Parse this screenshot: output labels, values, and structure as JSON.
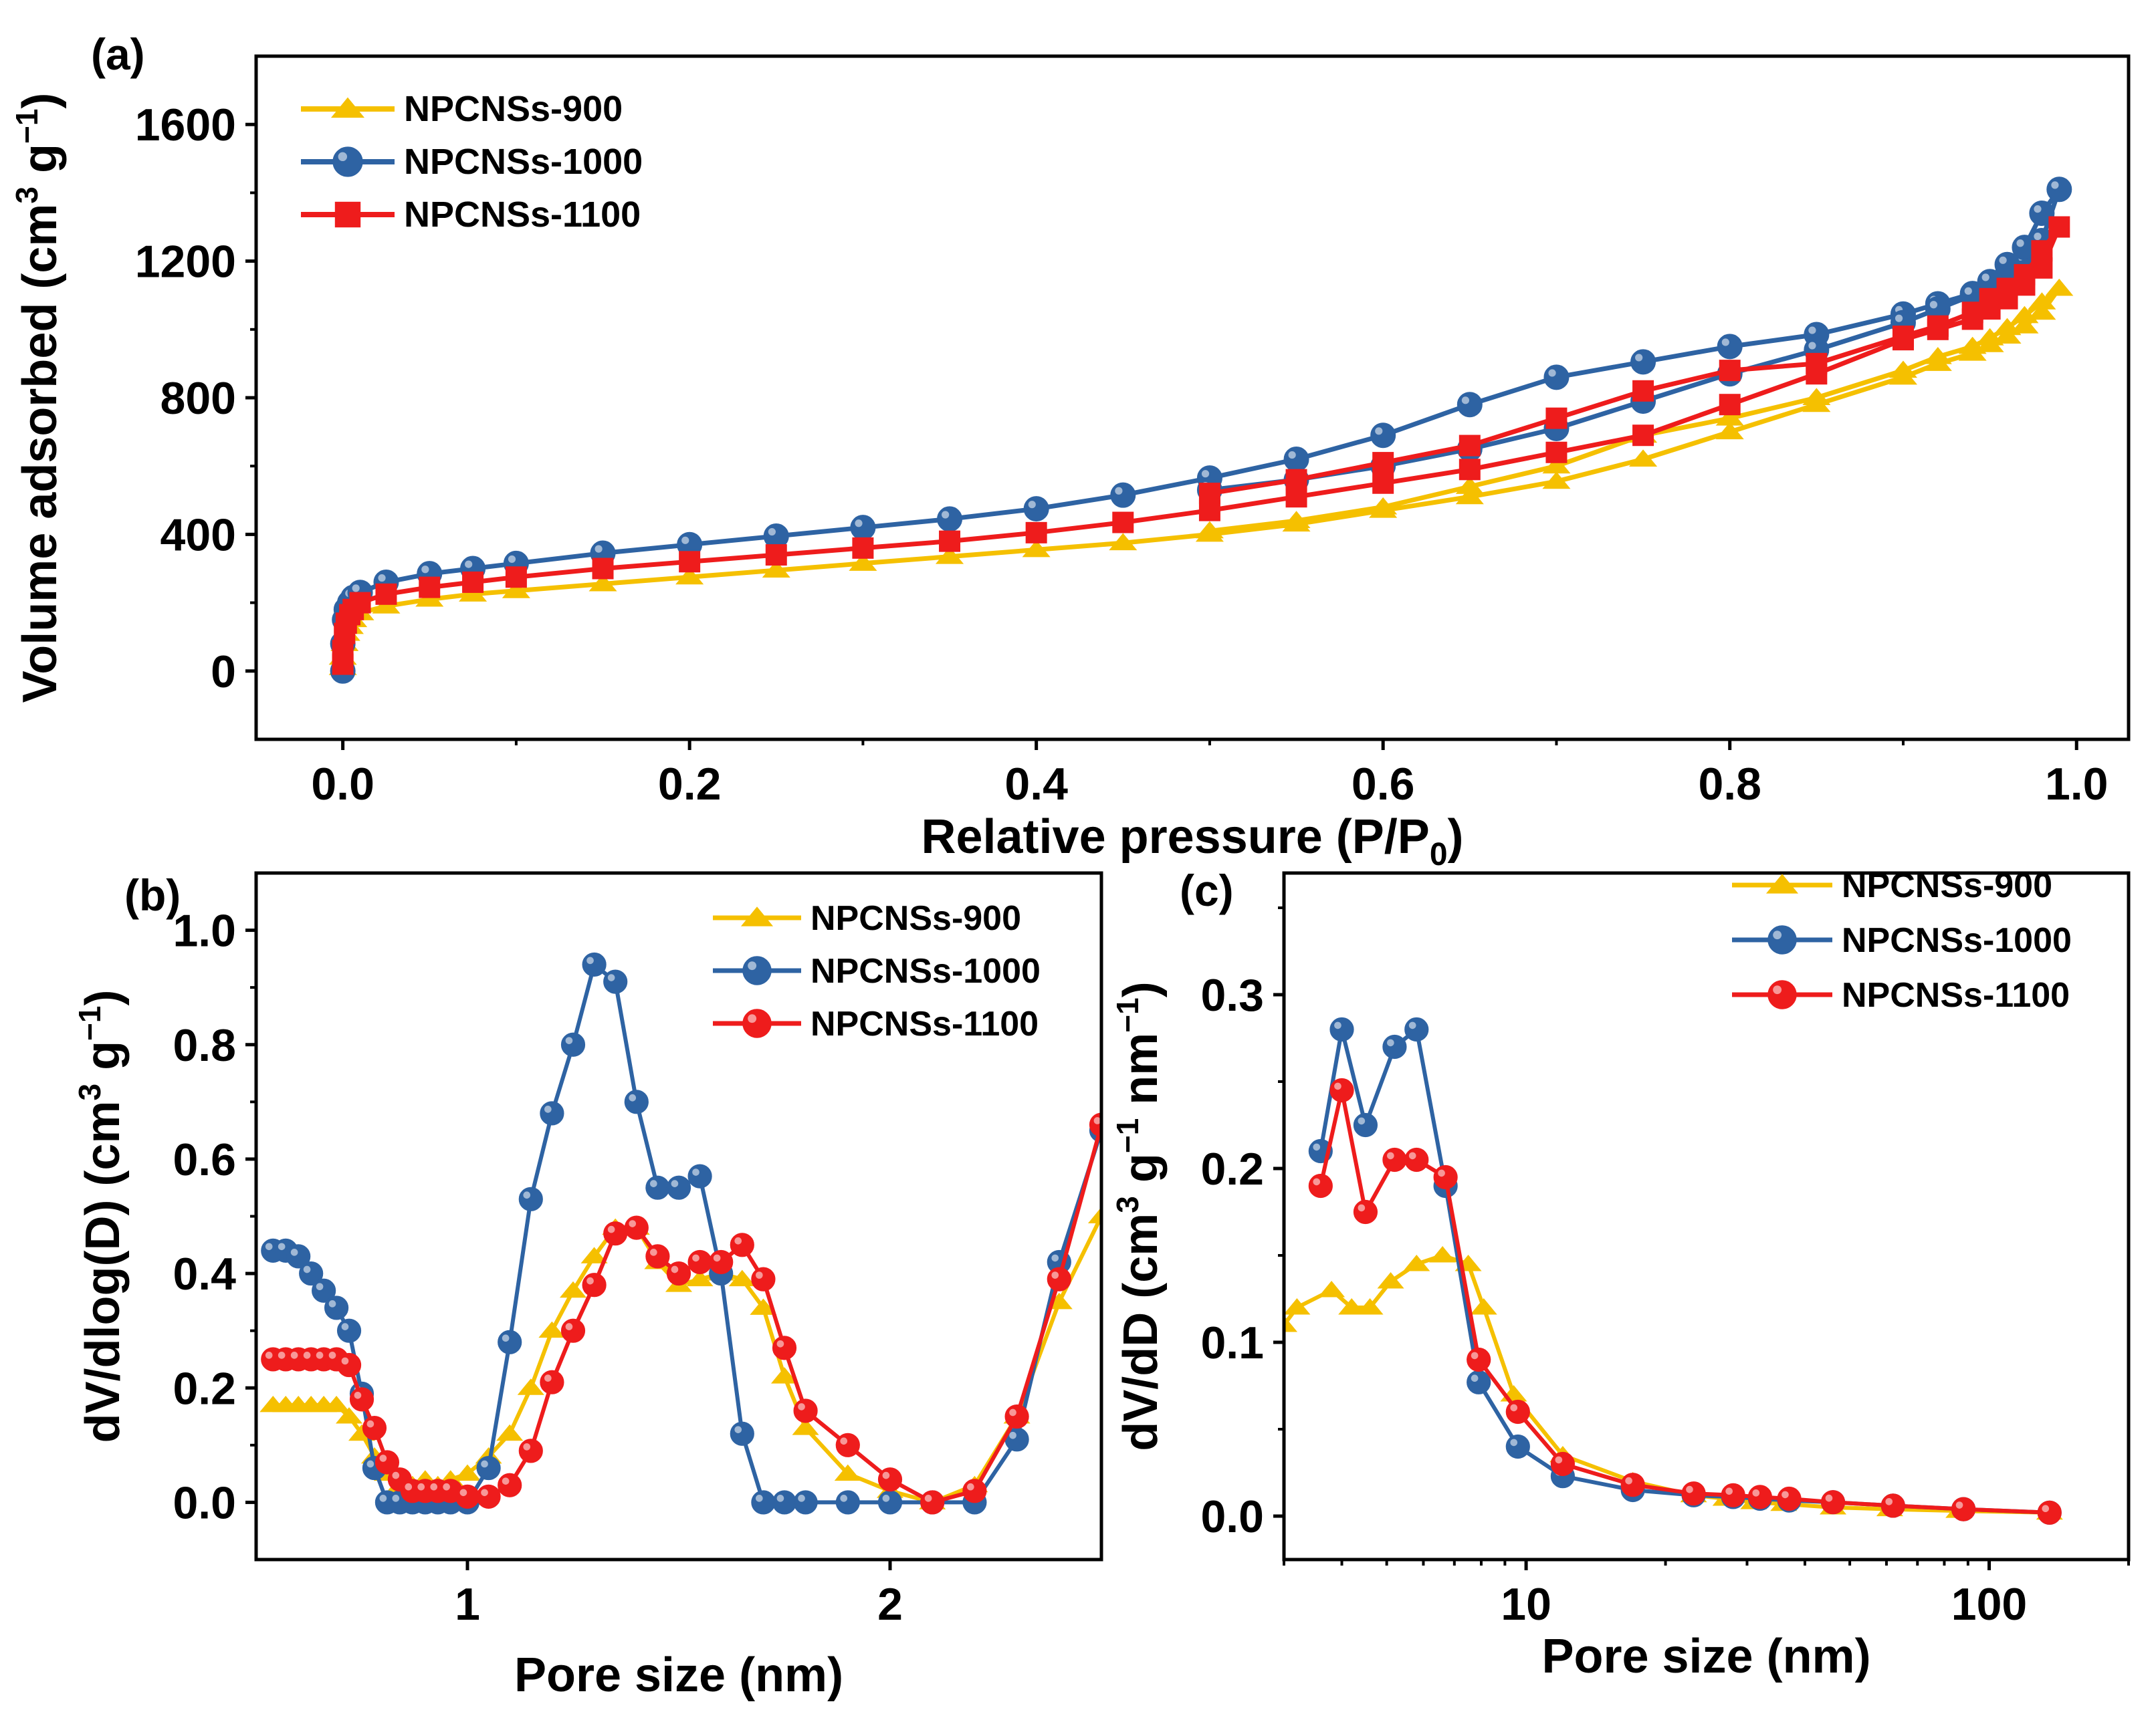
{
  "colors": {
    "npcns900": "#F5C000",
    "npcns1000": "#2E63A3",
    "npcns1100": "#EE1C1C",
    "axis": "#000000"
  },
  "chart_data": [
    {
      "panel": "(a)",
      "type": "line",
      "title": "",
      "xlabel": "Relative pressure (P/P",
      "xlabel_sub": "0",
      "xlabel_end": ")",
      "ylabel": "Volume adsorbed (cm",
      "ylabel_sup": "3",
      "ylabel_mid": " g",
      "ylabel_sup2": "−1",
      "ylabel_end": ")",
      "xlim": [
        -0.05,
        1.03
      ],
      "ylim": [
        -200,
        1800
      ],
      "xticks": [
        0.0,
        0.2,
        0.4,
        0.6,
        0.8,
        1.0
      ],
      "xtick_labels": [
        "0.0",
        "0.2",
        "0.4",
        "0.6",
        "0.8",
        "1.0"
      ],
      "yticks": [
        0,
        400,
        800,
        1200,
        1600
      ],
      "ytick_labels": [
        "0",
        "400",
        "800",
        "1200",
        "1600"
      ],
      "legend_position": "top-left",
      "series": [
        {
          "name": "NPCNSs-900",
          "marker": "triangle",
          "color_key": "npcns900",
          "x": [
            0.0,
            0.0,
            0.001,
            0.002,
            0.004,
            0.006,
            0.01,
            0.025,
            0.05,
            0.075,
            0.1,
            0.15,
            0.2,
            0.25,
            0.3,
            0.35,
            0.4,
            0.45,
            0.5,
            0.55,
            0.6,
            0.65,
            0.7,
            0.75,
            0.8,
            0.85,
            0.9,
            0.92,
            0.94,
            0.95,
            0.96,
            0.97,
            0.98,
            0.99,
            0.98,
            0.97,
            0.96,
            0.95,
            0.94,
            0.92,
            0.9,
            0.85,
            0.8,
            0.75,
            0.7,
            0.65,
            0.6,
            0.55,
            0.5
          ],
          "y": [
            10,
            40,
            80,
            110,
            130,
            150,
            170,
            190,
            210,
            225,
            235,
            255,
            275,
            295,
            315,
            335,
            355,
            375,
            400,
            430,
            470,
            510,
            555,
            620,
            700,
            780,
            860,
            900,
            930,
            955,
            980,
            1010,
            1050,
            1120,
            1080,
            1040,
            1005,
            975,
            950,
            920,
            880,
            800,
            740,
            690,
            600,
            540,
            480,
            440,
            410
          ]
        },
        {
          "name": "NPCNSs-1000",
          "marker": "circle",
          "color_key": "npcns1000",
          "x": [
            0.0,
            0.0,
            0.001,
            0.002,
            0.004,
            0.006,
            0.01,
            0.025,
            0.05,
            0.075,
            0.1,
            0.15,
            0.2,
            0.25,
            0.3,
            0.35,
            0.4,
            0.45,
            0.5,
            0.55,
            0.6,
            0.65,
            0.7,
            0.75,
            0.8,
            0.85,
            0.9,
            0.92,
            0.94,
            0.95,
            0.96,
            0.97,
            0.98,
            0.99,
            0.98,
            0.97,
            0.96,
            0.95,
            0.94,
            0.92,
            0.9,
            0.85,
            0.8,
            0.75,
            0.7,
            0.65,
            0.6,
            0.55,
            0.5
          ],
          "y": [
            0,
            80,
            150,
            180,
            200,
            215,
            230,
            260,
            285,
            300,
            315,
            345,
            370,
            395,
            420,
            445,
            475,
            515,
            565,
            620,
            690,
            780,
            860,
            905,
            950,
            985,
            1045,
            1075,
            1105,
            1130,
            1160,
            1200,
            1260,
            1410,
            1340,
            1240,
            1190,
            1140,
            1100,
            1060,
            1020,
            940,
            870,
            790,
            710,
            650,
            600,
            560,
            530
          ]
        },
        {
          "name": "NPCNSs-1100",
          "marker": "square",
          "color_key": "npcns1100",
          "x": [
            0.0,
            0.0,
            0.001,
            0.002,
            0.004,
            0.006,
            0.01,
            0.025,
            0.05,
            0.075,
            0.1,
            0.15,
            0.2,
            0.25,
            0.3,
            0.35,
            0.4,
            0.45,
            0.5,
            0.55,
            0.6,
            0.65,
            0.7,
            0.75,
            0.8,
            0.85,
            0.9,
            0.92,
            0.94,
            0.95,
            0.96,
            0.97,
            0.98,
            0.99,
            0.98,
            0.97,
            0.96,
            0.95,
            0.94,
            0.92,
            0.9,
            0.85,
            0.8,
            0.75,
            0.7,
            0.65,
            0.6,
            0.55,
            0.5
          ],
          "y": [
            20,
            60,
            110,
            140,
            165,
            180,
            200,
            225,
            245,
            260,
            275,
            300,
            320,
            340,
            360,
            380,
            405,
            435,
            470,
            510,
            550,
            590,
            640,
            690,
            780,
            870,
            970,
            1000,
            1030,
            1060,
            1090,
            1130,
            1180,
            1300,
            1230,
            1160,
            1120,
            1090,
            1050,
            1010,
            980,
            900,
            880,
            820,
            740,
            660,
            610,
            560,
            520
          ]
        }
      ]
    },
    {
      "panel": "(b)",
      "type": "line",
      "title": "",
      "xlabel": "Pore size (nm)",
      "ylabel": "dV/dlog(D) (cm",
      "ylabel_sup": "3",
      "ylabel_mid": " g",
      "ylabel_sup2": "−1",
      "ylabel_end": ")",
      "xlim": [
        0.5,
        2.5
      ],
      "ylim": [
        -0.1,
        1.1
      ],
      "xticks": [
        1,
        2
      ],
      "xtick_labels": [
        "1",
        "2"
      ],
      "yticks": [
        0.0,
        0.2,
        0.4,
        0.6,
        0.8,
        1.0
      ],
      "ytick_labels": [
        "0.0",
        "0.2",
        "0.4",
        "0.6",
        "0.8",
        "1.0"
      ],
      "legend_position": "top-right",
      "series": [
        {
          "name": "NPCNSs-900",
          "marker": "triangle",
          "color_key": "npcns900",
          "x": [
            0.54,
            0.57,
            0.6,
            0.63,
            0.66,
            0.69,
            0.72,
            0.75,
            0.78,
            0.81,
            0.84,
            0.87,
            0.9,
            0.93,
            0.96,
            1.0,
            1.05,
            1.1,
            1.15,
            1.2,
            1.25,
            1.3,
            1.35,
            1.4,
            1.45,
            1.5,
            1.55,
            1.6,
            1.65,
            1.7,
            1.75,
            1.8,
            1.9,
            2.0,
            2.1,
            2.2,
            2.3,
            2.4,
            2.5
          ],
          "y": [
            0.17,
            0.17,
            0.17,
            0.17,
            0.17,
            0.17,
            0.15,
            0.12,
            0.08,
            0.05,
            0.03,
            0.03,
            0.04,
            0.03,
            0.04,
            0.05,
            0.08,
            0.12,
            0.2,
            0.3,
            0.37,
            0.43,
            0.48,
            0.48,
            0.42,
            0.38,
            0.39,
            0.4,
            0.39,
            0.34,
            0.22,
            0.13,
            0.05,
            0.02,
            0.0,
            0.03,
            0.15,
            0.35,
            0.5
          ]
        },
        {
          "name": "NPCNSs-1000",
          "marker": "circle",
          "color_key": "npcns1000",
          "x": [
            0.54,
            0.57,
            0.6,
            0.63,
            0.66,
            0.69,
            0.72,
            0.75,
            0.78,
            0.81,
            0.84,
            0.87,
            0.9,
            0.93,
            0.96,
            1.0,
            1.05,
            1.1,
            1.15,
            1.2,
            1.25,
            1.3,
            1.35,
            1.4,
            1.45,
            1.5,
            1.55,
            1.6,
            1.65,
            1.7,
            1.75,
            1.8,
            1.9,
            2.0,
            2.1,
            2.2,
            2.3,
            2.4,
            2.5
          ],
          "y": [
            0.44,
            0.44,
            0.43,
            0.4,
            0.37,
            0.34,
            0.3,
            0.19,
            0.06,
            0.0,
            0.0,
            0.0,
            0.0,
            0.0,
            0.0,
            0.0,
            0.06,
            0.28,
            0.53,
            0.68,
            0.8,
            0.94,
            0.91,
            0.7,
            0.55,
            0.55,
            0.57,
            0.4,
            0.12,
            0.0,
            0.0,
            0.0,
            0.0,
            0.0,
            0.0,
            0.0,
            0.11,
            0.42,
            0.65
          ]
        },
        {
          "name": "NPCNSs-1100",
          "marker": "circle",
          "color_key": "npcns1100",
          "x": [
            0.54,
            0.57,
            0.6,
            0.63,
            0.66,
            0.69,
            0.72,
            0.75,
            0.78,
            0.81,
            0.84,
            0.87,
            0.9,
            0.93,
            0.96,
            1.0,
            1.05,
            1.1,
            1.15,
            1.2,
            1.25,
            1.3,
            1.35,
            1.4,
            1.45,
            1.5,
            1.55,
            1.6,
            1.65,
            1.7,
            1.75,
            1.8,
            1.9,
            2.0,
            2.1,
            2.2,
            2.3,
            2.4,
            2.5
          ],
          "y": [
            0.25,
            0.25,
            0.25,
            0.25,
            0.25,
            0.25,
            0.24,
            0.18,
            0.13,
            0.07,
            0.04,
            0.02,
            0.02,
            0.02,
            0.02,
            0.01,
            0.01,
            0.03,
            0.09,
            0.21,
            0.3,
            0.38,
            0.47,
            0.48,
            0.43,
            0.4,
            0.42,
            0.42,
            0.45,
            0.39,
            0.27,
            0.16,
            0.1,
            0.04,
            0.0,
            0.02,
            0.15,
            0.39,
            0.66
          ]
        }
      ]
    },
    {
      "panel": "(c)",
      "type": "line",
      "title": "",
      "xlabel": "Pore size (nm)",
      "ylabel": "dV/dD (cm",
      "ylabel_sup": "3",
      "ylabel_mid": " g",
      "ylabel_sup2": "−1",
      "ylabel_mid2": " nm",
      "ylabel_sup3": "−1",
      "ylabel_end": ")",
      "xscale": "log",
      "xlim": [
        3,
        200
      ],
      "ylim": [
        -0.025,
        0.37
      ],
      "xticks": [
        10,
        100
      ],
      "xtick_labels": [
        "10",
        "100"
      ],
      "yticks": [
        0.0,
        0.1,
        0.2,
        0.3
      ],
      "ytick_labels": [
        "0.0",
        "0.1",
        "0.2",
        "0.3"
      ],
      "legend_position": "top-right",
      "series": [
        {
          "name": "NPCNSs-900",
          "marker": "triangle",
          "color_key": "npcns900",
          "x": [
            3.0,
            3.2,
            3.8,
            4.2,
            4.6,
            5.1,
            5.8,
            6.6,
            7.5,
            8.1,
            9.4,
            12,
            17,
            23,
            27,
            31,
            36,
            46,
            61,
            86,
            135
          ],
          "y": [
            0.11,
            0.12,
            0.13,
            0.12,
            0.12,
            0.135,
            0.145,
            0.15,
            0.145,
            0.12,
            0.07,
            0.035,
            0.02,
            0.012,
            0.01,
            0.008,
            0.007,
            0.005,
            0.004,
            0.003,
            0.002
          ]
        },
        {
          "name": "NPCNSs-1000",
          "marker": "circle",
          "color_key": "npcns1000",
          "x": [
            3.6,
            4.0,
            4.5,
            5.2,
            5.8,
            6.7,
            7.9,
            9.6,
            12,
            17,
            23,
            28,
            32,
            37,
            46,
            62,
            88,
            135
          ],
          "y": [
            0.21,
            0.28,
            0.225,
            0.27,
            0.28,
            0.19,
            0.077,
            0.04,
            0.023,
            0.015,
            0.012,
            0.011,
            0.01,
            0.009,
            0.008,
            0.006,
            0.004,
            0.002
          ]
        },
        {
          "name": "NPCNSs-1100",
          "marker": "circle",
          "color_key": "npcns1100",
          "x": [
            3.6,
            4.0,
            4.5,
            5.2,
            5.8,
            6.7,
            7.9,
            9.6,
            12,
            17,
            23,
            28,
            32,
            37,
            46,
            62,
            88,
            135
          ],
          "y": [
            0.19,
            0.245,
            0.175,
            0.205,
            0.205,
            0.195,
            0.09,
            0.06,
            0.03,
            0.018,
            0.013,
            0.012,
            0.011,
            0.01,
            0.008,
            0.006,
            0.004,
            0.002
          ]
        }
      ]
    }
  ]
}
